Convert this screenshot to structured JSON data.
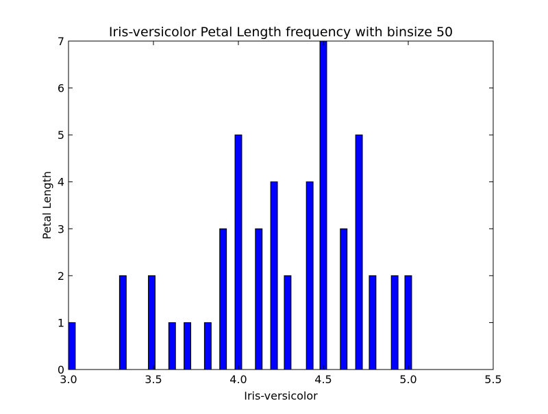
{
  "chart_data": {
    "type": "bar",
    "title": "Iris-versicolor Petal Length frequency with binsize 50",
    "xlabel": "Iris-versicolor",
    "ylabel": "Petal Length",
    "xlim": [
      3.0,
      5.5
    ],
    "ylim": [
      0,
      7
    ],
    "x_ticks": [
      "3.0",
      "3.5",
      "4.0",
      "4.5",
      "5.0",
      "5.5"
    ],
    "y_ticks": [
      "0",
      "1",
      "2",
      "3",
      "4",
      "5",
      "6",
      "7"
    ],
    "bar_width": 0.04,
    "bar_color": "#0000ff",
    "bars": [
      {
        "x": 3.0,
        "value": 1
      },
      {
        "x": 3.3,
        "value": 2
      },
      {
        "x": 3.47,
        "value": 2
      },
      {
        "x": 3.59,
        "value": 1
      },
      {
        "x": 3.68,
        "value": 1
      },
      {
        "x": 3.8,
        "value": 1
      },
      {
        "x": 3.89,
        "value": 3
      },
      {
        "x": 3.98,
        "value": 5
      },
      {
        "x": 4.1,
        "value": 3
      },
      {
        "x": 4.19,
        "value": 4
      },
      {
        "x": 4.27,
        "value": 2
      },
      {
        "x": 4.4,
        "value": 4
      },
      {
        "x": 4.48,
        "value": 7
      },
      {
        "x": 4.6,
        "value": 3
      },
      {
        "x": 4.69,
        "value": 5
      },
      {
        "x": 4.77,
        "value": 2
      },
      {
        "x": 4.9,
        "value": 2
      },
      {
        "x": 4.98,
        "value": 2
      }
    ],
    "grid": false,
    "legend": "none"
  }
}
